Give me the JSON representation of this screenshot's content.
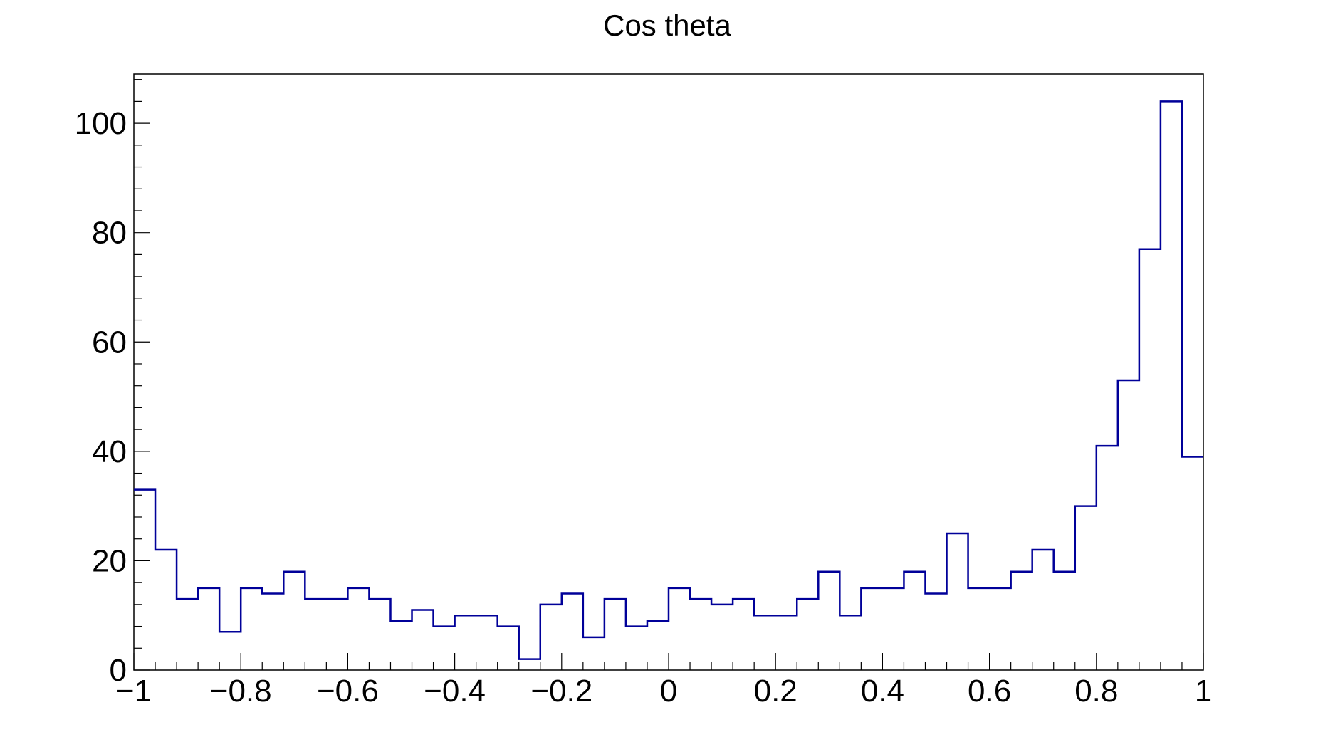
{
  "chart_data": {
    "type": "bar",
    "title": "Cos theta",
    "xlabel": "",
    "ylabel": "",
    "xlim": [
      -1,
      1
    ],
    "ylim": [
      0,
      109
    ],
    "bins": 50,
    "x_tick_labels": [
      "−1",
      "−0.8",
      "−0.6",
      "−0.4",
      "−0.2",
      "0",
      "0.2",
      "0.4",
      "0.6",
      "0.8",
      "1"
    ],
    "x_tick_values": [
      -1,
      -0.8,
      -0.6,
      -0.4,
      -0.2,
      0,
      0.2,
      0.4,
      0.6,
      0.8,
      1
    ],
    "y_tick_labels": [
      "0",
      "20",
      "40",
      "60",
      "80",
      "100"
    ],
    "y_tick_values": [
      0,
      20,
      40,
      60,
      80,
      100
    ],
    "grid": false,
    "series": [
      {
        "color": "#000099",
        "values": [
          33,
          22,
          13,
          15,
          7,
          15,
          14,
          18,
          13,
          13,
          15,
          13,
          9,
          11,
          8,
          10,
          10,
          8,
          2,
          12,
          14,
          6,
          13,
          8,
          9,
          15,
          13,
          12,
          13,
          10,
          10,
          13,
          18,
          10,
          15,
          15,
          18,
          14,
          25,
          15,
          15,
          18,
          22,
          18,
          30,
          41,
          53,
          77,
          104,
          39
        ]
      }
    ]
  }
}
